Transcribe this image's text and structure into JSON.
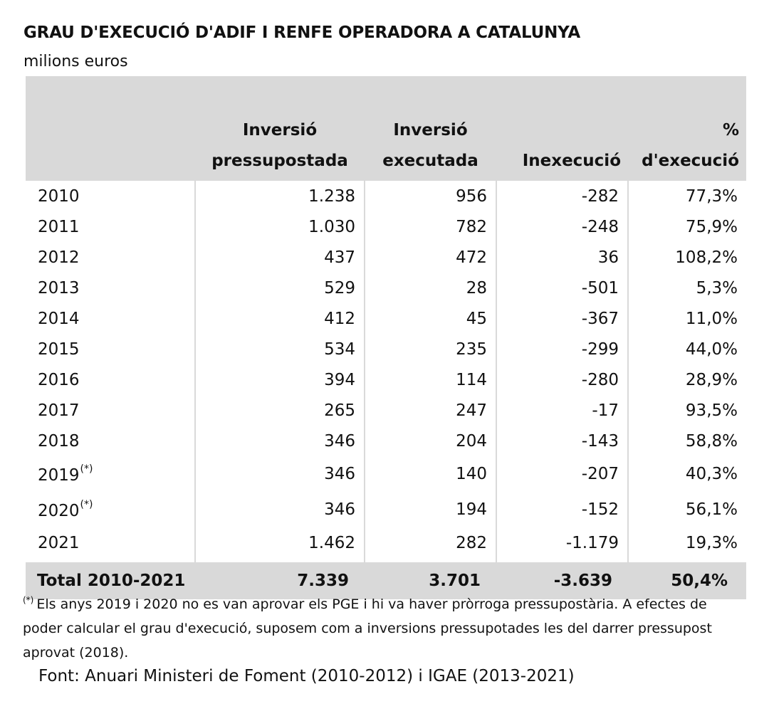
{
  "title": "GRAU D'EXECUCIÓ D'ADIF I RENFE OPERADORA A CATALUNYA",
  "subtitle": "milions euros",
  "table": {
    "headers": {
      "budgeted_line1": "Inversió",
      "budgeted_line2": "pressupostada",
      "executed_line1": "Inversió",
      "executed_line2": "executada",
      "unexecuted": "Inexecució",
      "execution_pct": "% d'execució"
    },
    "rows": [
      {
        "year": "2010",
        "note": "",
        "budgeted": "1.238",
        "executed": "956",
        "unexecuted": "-282",
        "pct": "77,3%"
      },
      {
        "year": "2011",
        "note": "",
        "budgeted": "1.030",
        "executed": "782",
        "unexecuted": "-248",
        "pct": "75,9%"
      },
      {
        "year": "2012",
        "note": "",
        "budgeted": "437",
        "executed": "472",
        "unexecuted": "36",
        "pct": "108,2%"
      },
      {
        "year": "2013",
        "note": "",
        "budgeted": "529",
        "executed": "28",
        "unexecuted": "-501",
        "pct": "5,3%"
      },
      {
        "year": "2014",
        "note": "",
        "budgeted": "412",
        "executed": "45",
        "unexecuted": "-367",
        "pct": "11,0%"
      },
      {
        "year": "2015",
        "note": "",
        "budgeted": "534",
        "executed": "235",
        "unexecuted": "-299",
        "pct": "44,0%"
      },
      {
        "year": "2016",
        "note": "",
        "budgeted": "394",
        "executed": "114",
        "unexecuted": "-280",
        "pct": "28,9%"
      },
      {
        "year": "2017",
        "note": "",
        "budgeted": "265",
        "executed": "247",
        "unexecuted": "-17",
        "pct": "93,5%"
      },
      {
        "year": "2018",
        "note": "",
        "budgeted": "346",
        "executed": "204",
        "unexecuted": "-143",
        "pct": "58,8%"
      },
      {
        "year": "2019",
        "note": "(*)",
        "budgeted": "346",
        "executed": "140",
        "unexecuted": "-207",
        "pct": "40,3%"
      },
      {
        "year": "2020",
        "note": "(*)",
        "budgeted": "346",
        "executed": "194",
        "unexecuted": "-152",
        "pct": "56,1%"
      },
      {
        "year": "2021",
        "note": "",
        "budgeted": "1.462",
        "executed": "282",
        "unexecuted": "-1.179",
        "pct": "19,3%"
      }
    ],
    "total": {
      "label": "Total 2010-2021",
      "budgeted": "7.339",
      "executed": "3.701",
      "unexecuted": "-3.639",
      "pct": "50,4%"
    }
  },
  "footnote": {
    "marker": "(*)",
    "text": "Els anys 2019 i 2020 no es van aprovar els PGE i hi va haver pròrroga pressupostària. A efectes de poder calcular el grau d'execució, suposem com a inversions pressupotades les del darrer pressupost aprovat (2018)."
  },
  "source": "Font: Anuari Ministeri de Foment  (2010-2012) i IGAE (2013-2021)",
  "colors": {
    "header_bg": "#d9d9d9",
    "text": "#111111",
    "background": "#ffffff"
  }
}
